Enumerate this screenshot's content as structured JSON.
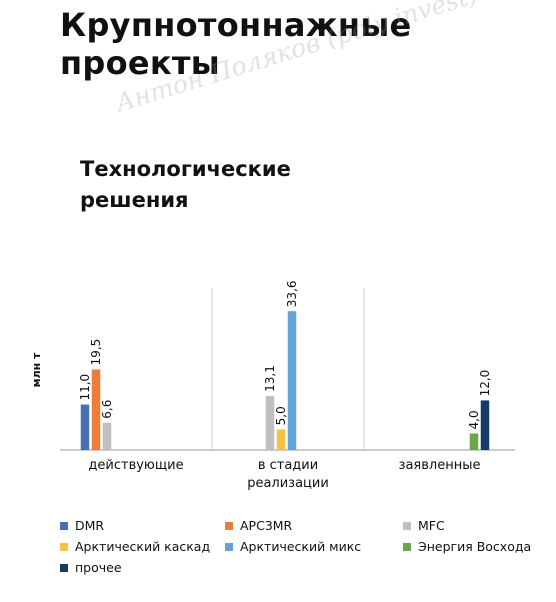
{
  "page": {
    "title": "Крупнотоннажные проекты",
    "watermark": "Антон Поляков (poly invest)"
  },
  "chart_data": {
    "type": "bar",
    "title": "Технологические решения",
    "xlabel": "",
    "ylabel": "млн т",
    "ylim": [
      0,
      40
    ],
    "grid": false,
    "legend_position": "bottom",
    "categories": [
      "действующие",
      "в стадии реализации",
      "заявленные"
    ],
    "series": [
      {
        "name": "DMR",
        "color": "#4a6fb0",
        "values": [
          11.0,
          null,
          null
        ],
        "labels": [
          "11,0",
          "",
          ""
        ]
      },
      {
        "name": "APC3MR",
        "color": "#ee7d3b",
        "values": [
          19.5,
          null,
          null
        ],
        "labels": [
          "19,5",
          "",
          ""
        ]
      },
      {
        "name": "MFC",
        "color": "#bfbfbf",
        "values": [
          6.6,
          13.1,
          null
        ],
        "labels": [
          "6,6",
          "13,1",
          ""
        ]
      },
      {
        "name": "Арктический каскад",
        "color": "#f5c242",
        "values": [
          null,
          5.0,
          null
        ],
        "labels": [
          "",
          "5,0",
          ""
        ]
      },
      {
        "name": "Арктический микс",
        "color": "#65a3d6",
        "values": [
          null,
          33.6,
          null
        ],
        "labels": [
          "",
          "33,6",
          ""
        ]
      },
      {
        "name": "Энергия Восхода",
        "color": "#6ba64a",
        "values": [
          null,
          null,
          4.0
        ],
        "labels": [
          "",
          "",
          "4,0"
        ]
      },
      {
        "name": "прочее",
        "color": "#183a66",
        "values": [
          null,
          null,
          12.0
        ],
        "labels": [
          "",
          "",
          "12,0"
        ]
      }
    ]
  }
}
